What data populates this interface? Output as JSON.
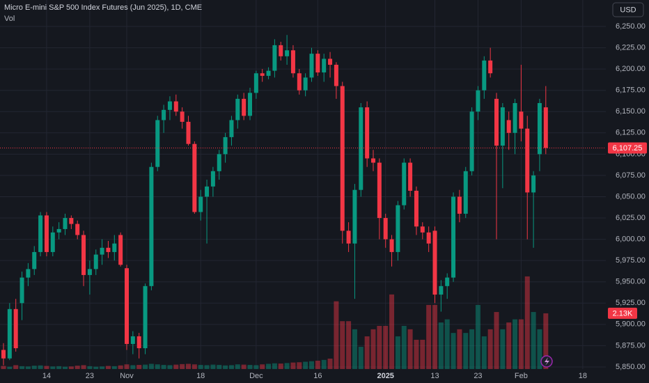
{
  "chart_data": {
    "type": "candlestick",
    "title": "Micro E-mini S&P 500 Index Futures (Jun 2025), 1D, CME",
    "indicator": "Vol",
    "currency": "USD",
    "categories": [
      null,
      null,
      null,
      null,
      null,
      null,
      null,
      "14",
      null,
      null,
      null,
      null,
      null,
      null,
      "23",
      null,
      null,
      null,
      null,
      null,
      "Nov",
      null,
      null,
      null,
      null,
      null,
      null,
      null,
      null,
      null,
      null,
      null,
      "18",
      null,
      null,
      null,
      null,
      null,
      null,
      null,
      null,
      "Dec",
      null,
      null,
      null,
      null,
      null,
      null,
      null,
      null,
      null,
      "16",
      null,
      null,
      null,
      null,
      null,
      null,
      null,
      null,
      null,
      null,
      "2025",
      null,
      null,
      null,
      null,
      null,
      null,
      null,
      "13",
      null,
      null,
      null,
      null,
      null,
      null,
      "23",
      null,
      null,
      null,
      null,
      null,
      null,
      "Feb",
      null,
      null,
      null,
      null,
      null,
      null,
      null,
      null,
      null,
      "18",
      null
    ],
    "open": [
      5870,
      5860,
      5918,
      5925,
      5955,
      5965,
      5985,
      6028,
      5985,
      6008,
      6012,
      6025,
      6018,
      6005,
      5958,
      5965,
      5982,
      5990,
      5985,
      6005,
      5966,
      5877,
      5886,
      5872,
      5945,
      6085,
      6140,
      6152,
      6162,
      6150,
      6138,
      6112,
      6032,
      6050,
      6062,
      6080,
      6100,
      6120,
      6140,
      6165,
      6145,
      6172,
      6195,
      6192,
      6198,
      6228,
      6215,
      6222,
      6195,
      6175,
      6190,
      6218,
      6196,
      6212,
      6205,
      6180,
      6010,
      5995,
      6058,
      6155,
      6095,
      6090,
      6025,
      6000,
      5985,
      6040,
      6090,
      6057,
      6015,
      6008,
      6010,
      5935,
      5945,
      5955,
      6050,
      6030,
      6080,
      6150,
      6175,
      6210,
      6165,
      6110,
      6140,
      6125,
      6150,
      6130,
      6055,
      6100,
      6155,
      null,
      null,
      null,
      null,
      null,
      null,
      null
    ],
    "high": [
      5878,
      5925,
      5930,
      5962,
      5972,
      5992,
      6032,
      6032,
      6015,
      6020,
      6030,
      6028,
      6022,
      6010,
      5975,
      5988,
      6000,
      5998,
      6005,
      6008,
      5970,
      5892,
      5890,
      5948,
      6090,
      6145,
      6158,
      6168,
      6170,
      6155,
      6145,
      6115,
      6058,
      6070,
      6085,
      6105,
      6125,
      6145,
      6170,
      6172,
      6178,
      6198,
      6200,
      6202,
      6235,
      6232,
      6240,
      6228,
      6200,
      6195,
      6225,
      6222,
      6218,
      6220,
      6208,
      6185,
      6020,
      6065,
      6160,
      6162,
      6105,
      6095,
      6030,
      6005,
      6045,
      6095,
      6095,
      6062,
      6020,
      6015,
      6015,
      5952,
      5960,
      6055,
      6058,
      6085,
      6155,
      6180,
      6215,
      6225,
      6172,
      6160,
      6150,
      6165,
      6205,
      6145,
      6080,
      6165,
      6180,
      null,
      null,
      null,
      null,
      null,
      null,
      null
    ],
    "low": [
      5852,
      5858,
      5868,
      5905,
      5945,
      5958,
      5980,
      5980,
      5980,
      6000,
      6005,
      6012,
      6000,
      5945,
      5935,
      5958,
      5970,
      5978,
      5975,
      5968,
      5870,
      5865,
      5860,
      5865,
      5940,
      6080,
      6125,
      6140,
      6145,
      6130,
      6110,
      6030,
      6022,
      5995,
      6050,
      6070,
      6090,
      6110,
      6130,
      6140,
      6140,
      6165,
      6185,
      6188,
      6190,
      6210,
      6205,
      6190,
      6170,
      6168,
      6185,
      6192,
      6185,
      6190,
      6165,
      5995,
      5985,
      5930,
      6050,
      6085,
      6080,
      6000,
      5990,
      5968,
      5975,
      6035,
      6050,
      6005,
      6000,
      5985,
      5925,
      5915,
      5930,
      5950,
      6020,
      6025,
      6075,
      6140,
      6165,
      6190,
      6000,
      6060,
      6105,
      6100,
      6115,
      6000,
      5990,
      6080,
      6100,
      null,
      null,
      null,
      null,
      null,
      null,
      null
    ],
    "close": [
      5860,
      5918,
      5872,
      5955,
      5965,
      5985,
      6028,
      5985,
      6008,
      6012,
      6025,
      6018,
      6005,
      5958,
      5965,
      5982,
      5990,
      5985,
      5995,
      5970,
      5877,
      5886,
      5872,
      5945,
      6085,
      6140,
      6152,
      6162,
      6150,
      6138,
      6112,
      6032,
      6050,
      6062,
      6080,
      6100,
      6120,
      6140,
      6165,
      6145,
      6172,
      6195,
      6192,
      6198,
      6228,
      6215,
      6222,
      6195,
      6175,
      6190,
      6218,
      6196,
      6212,
      6205,
      6180,
      6010,
      5995,
      6058,
      6155,
      6095,
      6090,
      6025,
      6000,
      5985,
      6040,
      6090,
      6057,
      6015,
      6008,
      5995,
      5935,
      5945,
      5955,
      6050,
      6030,
      6080,
      6150,
      6175,
      6210,
      6195,
      6110,
      6155,
      6125,
      6160,
      6130,
      6055,
      6075,
      6160,
      6107.25,
      null,
      null,
      null,
      null,
      null,
      null,
      null
    ],
    "volume": [
      120,
      90,
      150,
      110,
      100,
      130,
      140,
      120,
      100,
      110,
      90,
      100,
      130,
      150,
      110,
      90,
      100,
      120,
      110,
      140,
      180,
      150,
      160,
      170,
      200,
      180,
      160,
      150,
      170,
      190,
      200,
      180,
      160,
      150,
      170,
      160,
      140,
      150,
      180,
      170,
      160,
      150,
      180,
      200,
      220,
      210,
      230,
      250,
      260,
      280,
      300,
      320,
      350,
      400,
      2590,
      1830,
      1830,
      1520,
      850,
      1250,
      1520,
      1650,
      1650,
      2850,
      1250,
      1650,
      1520,
      1120,
      1120,
      2450,
      2450,
      1780,
      1900,
      1380,
      1520,
      1380,
      1520,
      2450,
      1250,
      1520,
      2180,
      1520,
      1780,
      1900,
      1900,
      3540,
      2180,
      1520,
      2130,
      null,
      null,
      null,
      null,
      null,
      null,
      null
    ],
    "close_label": "6,107.25",
    "volume_label": "2.13K",
    "ylim": [
      5847.5,
      6281.1
    ],
    "yticks": [
      {
        "value": 5850,
        "label": "5,850.00"
      },
      {
        "value": 5875,
        "label": "5,875.00"
      },
      {
        "value": 5900,
        "label": "5,900.00"
      },
      {
        "value": 5925,
        "label": "5,925.00"
      },
      {
        "value": 5950,
        "label": "5,950.00"
      },
      {
        "value": 5975,
        "label": "5,975.00"
      },
      {
        "value": 6000,
        "label": "6,000.00"
      },
      {
        "value": 6025,
        "label": "6,025.00"
      },
      {
        "value": 6050,
        "label": "6,050.00"
      },
      {
        "value": 6075,
        "label": "6,075.00"
      },
      {
        "value": 6100,
        "label": "6,100.00"
      },
      {
        "value": 6125,
        "label": "6,125.00"
      },
      {
        "value": 6150,
        "label": "6,150.00"
      },
      {
        "value": 6175,
        "label": "6,175.00"
      },
      {
        "value": 6200,
        "label": "6,200.00"
      },
      {
        "value": 6225,
        "label": "6,225.00"
      },
      {
        "value": 6250,
        "label": "6,250.00"
      }
    ],
    "volume_lim": [
      0,
      14100
    ],
    "up_color": "#089981",
    "down_color": "#f23645",
    "grid": true
  }
}
